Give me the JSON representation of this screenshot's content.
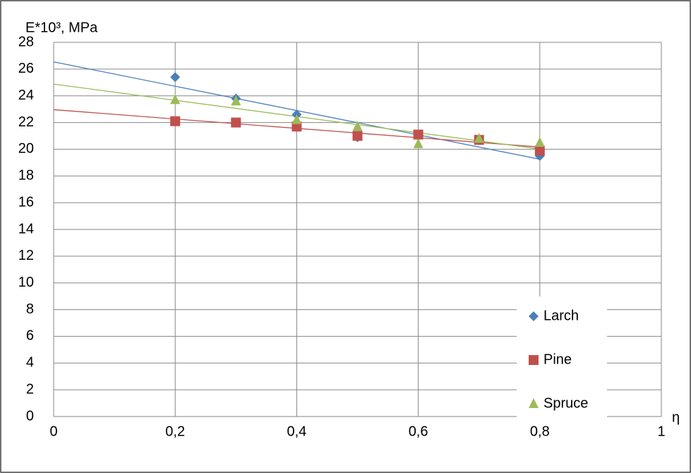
{
  "chart_data": {
    "type": "scatter",
    "y_label": "E*10³, MPa",
    "x_label": "η",
    "x": [
      0.2,
      0.3,
      0.4,
      0.5,
      0.6,
      0.7,
      0.8
    ],
    "series": [
      {
        "name": "Larch",
        "color": "#4a7ebb",
        "marker": "diamond",
        "values": [
          25.4,
          23.8,
          22.6,
          20.9,
          21.0,
          20.7,
          19.5
        ]
      },
      {
        "name": "Pine",
        "color": "#c0504d",
        "marker": "square",
        "values": [
          22.1,
          22.0,
          21.7,
          21.0,
          21.1,
          20.7,
          19.9
        ]
      },
      {
        "name": "Spruce",
        "color": "#9bbb59",
        "marker": "triangle",
        "values": [
          23.7,
          23.6,
          22.2,
          21.7,
          20.4,
          20.8,
          20.5
        ]
      }
    ],
    "trendline": "linear",
    "xlim": [
      0,
      1
    ],
    "ylim": [
      0,
      28
    ],
    "xticks": [
      0,
      {
        "value": 0.2,
        "label": "0,2"
      },
      {
        "value": 0.4,
        "label": "0,4"
      },
      {
        "value": 0.6,
        "label": "0,6"
      },
      {
        "value": 0.8,
        "label": "0,8"
      },
      1
    ],
    "yticks": [
      0,
      2,
      4,
      6,
      8,
      10,
      12,
      14,
      16,
      18,
      20,
      22,
      24,
      26,
      28
    ],
    "grid": true,
    "legend": "lower-right"
  }
}
